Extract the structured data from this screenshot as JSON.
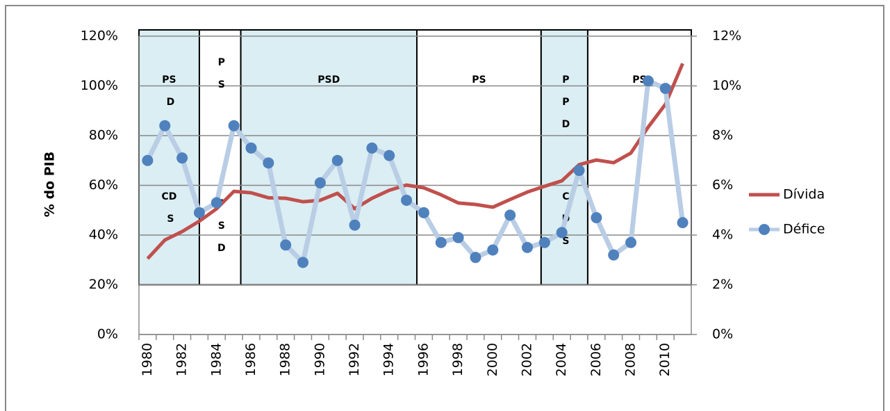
{
  "chart_data": {
    "type": "line",
    "y_label": "% do PIB",
    "categories": [
      "1980",
      null,
      "1982",
      null,
      "1984",
      null,
      "1986",
      null,
      "1988",
      null,
      "1990",
      null,
      "1992",
      null,
      "1994",
      null,
      "1996",
      null,
      "1998",
      null,
      "2000",
      null,
      "2002",
      null,
      "2004",
      null,
      "2006",
      null,
      "2008",
      null,
      "2010",
      null
    ],
    "ylim": [
      0,
      120
    ],
    "yticks": [
      {
        "value": 0,
        "label": "0%"
      },
      {
        "value": 20,
        "label": "20%"
      },
      {
        "value": 40,
        "label": "40%"
      },
      {
        "value": 60,
        "label": "60%"
      },
      {
        "value": 80,
        "label": "80%"
      },
      {
        "value": 100,
        "label": "100%"
      },
      {
        "value": 120,
        "label": "120%"
      }
    ],
    "y2lim": [
      0,
      12
    ],
    "y2ticks": [
      {
        "value": 0,
        "label": "0%"
      },
      {
        "value": 2,
        "label": "2%"
      },
      {
        "value": 4,
        "label": "4%"
      },
      {
        "value": 6,
        "label": "6%"
      },
      {
        "value": 8,
        "label": "8%"
      },
      {
        "value": 10,
        "label": "10%"
      },
      {
        "value": 12,
        "label": "12%"
      }
    ],
    "grid": true,
    "legend": "right",
    "series": [
      {
        "name": "Dívida",
        "color": "#c0504d",
        "axis": "y",
        "values": [
          30.5,
          38,
          41.4,
          45.6,
          50.6,
          57.6,
          57,
          55,
          54.8,
          53.4,
          54,
          56.8,
          50.6,
          54.8,
          58,
          60.1,
          59,
          56.2,
          52.9,
          52.3,
          51.2,
          54.3,
          57.3,
          59.6,
          61.8,
          68.3,
          70.2,
          69.1,
          73,
          83.4,
          92.6,
          109
        ]
      },
      {
        "name": "Défice",
        "color": "#b9cde5",
        "marker_color": "#4f81bd",
        "axis": "y2",
        "values": [
          7.0,
          8.4,
          7.1,
          4.9,
          5.3,
          8.4,
          7.5,
          6.9,
          3.6,
          2.9,
          6.1,
          7.0,
          4.4,
          7.5,
          7.2,
          5.4,
          4.9,
          3.7,
          3.9,
          3.1,
          3.4,
          4.8,
          3.5,
          3.7,
          4.1,
          6.6,
          4.7,
          3.2,
          3.7,
          10.2,
          9.9,
          4.5
        ]
      }
    ],
    "period_ylim": [
      20,
      120
    ],
    "periods": [
      {
        "start": 1979.5,
        "end": 1983,
        "shaded": true,
        "labels": [
          [
            "PS",
            "D"
          ],
          [
            "CD",
            "S"
          ]
        ]
      },
      {
        "start": 1983,
        "end": 1985.4,
        "shaded": false,
        "labels": [
          [
            "P",
            "S"
          ],
          [
            "P",
            "S",
            "D"
          ]
        ]
      },
      {
        "start": 1985.4,
        "end": 1995.6,
        "shaded": true,
        "labels": [
          [
            "PSD"
          ]
        ]
      },
      {
        "start": 1995.6,
        "end": 2002.8,
        "shaded": false,
        "labels": [
          [
            "PS"
          ]
        ]
      },
      {
        "start": 2002.8,
        "end": 2005.5,
        "shaded": true,
        "labels": [
          [
            "P",
            "P",
            "D"
          ],
          [
            "C",
            "D",
            "S"
          ]
        ]
      },
      {
        "start": 2005.5,
        "end": 2011.5,
        "shaded": false,
        "labels": [
          [
            "PS"
          ]
        ]
      }
    ],
    "shade_color": "#daeef3",
    "first_year": 1980
  }
}
